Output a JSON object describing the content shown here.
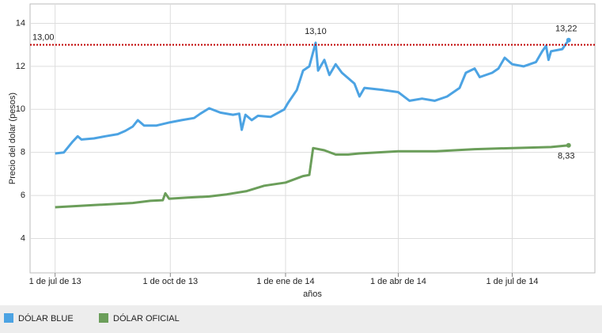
{
  "chart_data": {
    "type": "line",
    "y_label": "Precio del dolar (pesos)",
    "x_label": "años",
    "ylim": [
      2.4,
      14.9
    ],
    "yticks": [
      4,
      6,
      8,
      10,
      12,
      14
    ],
    "xlim": [
      "2013-06-11",
      "2014-09-05"
    ],
    "xticks": [
      {
        "value": "2013-07-01",
        "label": "1 de jul de 13"
      },
      {
        "value": "2013-10-01",
        "label": "1 de oct de 13"
      },
      {
        "value": "2014-01-01",
        "label": "1 de ene de 14"
      },
      {
        "value": "2014-04-01",
        "label": "1 de abr de 14"
      },
      {
        "value": "2014-07-01",
        "label": "1 de jul de 14"
      }
    ],
    "grid": true,
    "reference_line": {
      "value": 13,
      "label": "13,00",
      "color": "#c00000"
    },
    "series": [
      {
        "name": "DÓLAR BLUE",
        "color": "#4ca3e3",
        "x": [
          "2013-07-01",
          "2013-07-08",
          "2013-07-15",
          "2013-07-19",
          "2013-07-22",
          "2013-08-01",
          "2013-08-10",
          "2013-08-20",
          "2013-08-26",
          "2013-09-01",
          "2013-09-05",
          "2013-09-10",
          "2013-09-20",
          "2013-10-01",
          "2013-10-10",
          "2013-10-20",
          "2013-10-25",
          "2013-11-01",
          "2013-11-10",
          "2013-11-20",
          "2013-11-25",
          "2013-11-27",
          "2013-11-30",
          "2013-12-05",
          "2013-12-10",
          "2013-12-20",
          "2013-12-31",
          "2014-01-03",
          "2014-01-10",
          "2014-01-15",
          "2014-01-20",
          "2014-01-25",
          "2014-01-27",
          "2014-02-01",
          "2014-02-05",
          "2014-02-10",
          "2014-02-15",
          "2014-02-25",
          "2014-03-01",
          "2014-03-05",
          "2014-03-20",
          "2014-04-01",
          "2014-04-10",
          "2014-04-20",
          "2014-04-30",
          "2014-05-10",
          "2014-05-20",
          "2014-05-25",
          "2014-06-01",
          "2014-06-05",
          "2014-06-15",
          "2014-06-20",
          "2014-06-25",
          "2014-07-01",
          "2014-07-10",
          "2014-07-20",
          "2014-07-25",
          "2014-07-28",
          "2014-07-30",
          "2014-08-01",
          "2014-08-10",
          "2014-08-15"
        ],
        "values": [
          7.95,
          8.0,
          8.5,
          8.75,
          8.6,
          8.65,
          8.75,
          8.85,
          9.0,
          9.2,
          9.5,
          9.25,
          9.25,
          9.4,
          9.5,
          9.6,
          9.8,
          10.05,
          9.85,
          9.75,
          9.8,
          9.05,
          9.75,
          9.5,
          9.7,
          9.65,
          10.0,
          10.3,
          10.9,
          11.8,
          12.0,
          13.1,
          11.8,
          12.3,
          11.6,
          12.1,
          11.7,
          11.2,
          10.6,
          11.0,
          10.9,
          10.8,
          10.4,
          10.5,
          10.4,
          10.6,
          11.0,
          11.7,
          11.9,
          11.5,
          11.7,
          11.9,
          12.4,
          12.1,
          12.0,
          12.2,
          12.7,
          12.95,
          12.3,
          12.7,
          12.8,
          13.22
        ]
      },
      {
        "name": "DÓLAR OFICIAL",
        "color": "#6b9e5a",
        "x": [
          "2013-07-01",
          "2013-08-01",
          "2013-09-01",
          "2013-09-15",
          "2013-09-25",
          "2013-09-27",
          "2013-09-30",
          "2013-10-15",
          "2013-11-01",
          "2013-11-15",
          "2013-12-01",
          "2013-12-15",
          "2014-01-01",
          "2014-01-15",
          "2014-01-20",
          "2014-01-23",
          "2014-02-01",
          "2014-02-10",
          "2014-02-20",
          "2014-03-01",
          "2014-04-01",
          "2014-05-01",
          "2014-06-01",
          "2014-07-01",
          "2014-08-01",
          "2014-08-15"
        ],
        "values": [
          5.45,
          5.55,
          5.65,
          5.75,
          5.78,
          6.1,
          5.85,
          5.9,
          5.95,
          6.05,
          6.2,
          6.45,
          6.6,
          6.9,
          6.95,
          8.2,
          8.1,
          7.9,
          7.9,
          7.95,
          8.05,
          8.05,
          8.15,
          8.2,
          8.25,
          8.33
        ]
      }
    ],
    "annotations": [
      {
        "series": 0,
        "x": "2014-01-25",
        "value": 13.1,
        "label": "13,10"
      },
      {
        "series": 0,
        "x": "2014-08-15",
        "value": 13.22,
        "label": "13,22"
      },
      {
        "series": 1,
        "x": "2014-08-15",
        "value": 8.33,
        "label": "8,33"
      }
    ]
  }
}
